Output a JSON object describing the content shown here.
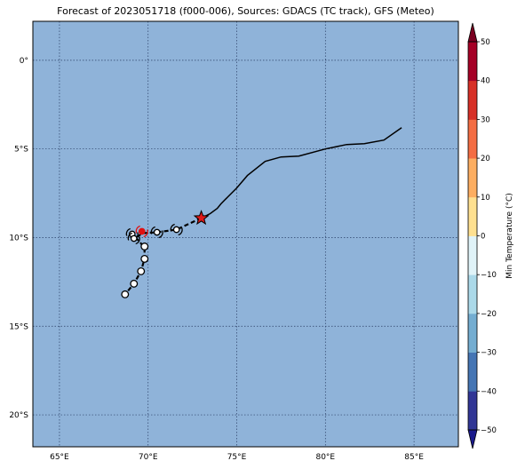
{
  "title": "Forecast of 2023051718 (f000-006), Sources: GDACS (TC track), GFS (Meteo)",
  "map": {
    "ocean_color": "#8fb3d9",
    "lon_range": [
      63.5,
      87.5
    ],
    "lat_range": [
      -21.8,
      2.2
    ],
    "lon_ticks": [
      {
        "v": 65,
        "label": "65°E"
      },
      {
        "v": 70,
        "label": "70°E"
      },
      {
        "v": 75,
        "label": "75°E"
      },
      {
        "v": 80,
        "label": "80°E"
      },
      {
        "v": 85,
        "label": "85°E"
      }
    ],
    "lat_ticks": [
      {
        "v": 0,
        "label": "0°"
      },
      {
        "v": -5,
        "label": "5°S"
      },
      {
        "v": -10,
        "label": "10°S"
      },
      {
        "v": -15,
        "label": "15°S"
      },
      {
        "v": -20,
        "label": "20°S"
      }
    ]
  },
  "track": {
    "past_path": [
      [
        84.3,
        -3.8
      ],
      [
        83.3,
        -4.5
      ],
      [
        82.2,
        -4.7
      ],
      [
        81.2,
        -4.75
      ],
      [
        80.0,
        -5.0
      ],
      [
        78.5,
        -5.4
      ],
      [
        77.5,
        -5.45
      ],
      [
        76.6,
        -5.7
      ],
      [
        75.6,
        -6.5
      ],
      [
        75.0,
        -7.2
      ],
      [
        74.5,
        -7.7
      ],
      [
        74.1,
        -8.1
      ],
      [
        73.9,
        -8.35
      ],
      [
        73.5,
        -8.65
      ],
      [
        73.0,
        -8.9
      ]
    ],
    "forecast_path": [
      [
        73.0,
        -8.9
      ],
      [
        71.6,
        -9.55
      ],
      [
        70.5,
        -9.7
      ],
      [
        69.7,
        -9.75
      ],
      [
        69.3,
        -10.0
      ],
      [
        69.1,
        -9.85
      ],
      [
        69.3,
        -10.0
      ],
      [
        69.8,
        -10.55
      ],
      [
        69.8,
        -11.2
      ],
      [
        69.6,
        -11.9
      ],
      [
        69.2,
        -12.6
      ],
      [
        68.7,
        -13.2
      ]
    ],
    "current": [
      73.0,
      -8.9
    ],
    "storm_symbols": [
      [
        71.6,
        -9.55
      ],
      [
        70.5,
        -9.7
      ],
      [
        69.1,
        -9.8
      ],
      [
        69.2,
        -10.05
      ]
    ],
    "red_symbol": [
      69.65,
      -9.65
    ],
    "circle_points": [
      [
        69.8,
        -10.5
      ],
      [
        69.8,
        -11.2
      ],
      [
        69.6,
        -11.9
      ],
      [
        69.2,
        -12.6
      ],
      [
        68.7,
        -13.2
      ]
    ]
  },
  "colorbar": {
    "label": "Min Temperature (°C)",
    "levels": [
      -50,
      -40,
      -30,
      -20,
      -10,
      0,
      10,
      20,
      30,
      40,
      50
    ],
    "tick_labels": [
      "50",
      "40",
      "30",
      "20",
      "10",
      "0",
      "−10",
      "−20",
      "−30",
      "−40",
      "−50"
    ],
    "colors": [
      "#313695",
      "#4575b4",
      "#74add1",
      "#abd9e9",
      "#e0f3f8",
      "#fee090",
      "#fdae61",
      "#f46d43",
      "#d73027",
      "#a50026"
    ],
    "under_color": "#1a1a8c",
    "over_color": "#7a0020"
  }
}
